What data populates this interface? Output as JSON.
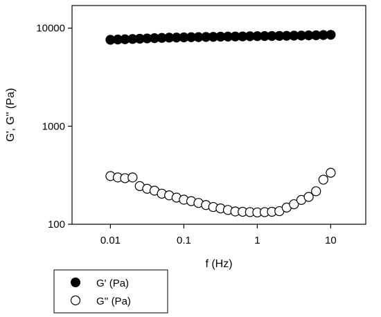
{
  "chart_data": {
    "type": "scatter",
    "xlabel": "f (Hz)",
    "ylabel": "G', G'' (Pa)",
    "xscale": "log",
    "yscale": "log",
    "xlim": [
      0.003,
      30
    ],
    "ylim": [
      100,
      17000
    ],
    "x_ticks": [
      0.01,
      0.1,
      1,
      10
    ],
    "x_tick_labels": [
      "0.01",
      "0.1",
      "1",
      "10"
    ],
    "y_ticks": [
      100,
      1000,
      10000
    ],
    "y_tick_labels": [
      "100",
      "1000",
      "10000"
    ],
    "grid": false,
    "legend": "bottom-left-outside",
    "x": [
      0.01,
      0.0126,
      0.0158,
      0.02,
      0.0251,
      0.0316,
      0.0398,
      0.0501,
      0.0631,
      0.0794,
      0.1,
      0.126,
      0.158,
      0.2,
      0.251,
      0.316,
      0.398,
      0.501,
      0.631,
      0.794,
      1,
      1.26,
      1.58,
      2,
      2.51,
      3.16,
      3.98,
      5.01,
      6.31,
      7.94,
      10
    ],
    "series": [
      {
        "name": "G' (Pa)",
        "marker": "filled-circle",
        "color": "#000000",
        "values": [
          7600,
          7650,
          7700,
          7750,
          7800,
          7850,
          7900,
          7950,
          8000,
          8020,
          8050,
          8080,
          8100,
          8130,
          8150,
          8180,
          8200,
          8220,
          8240,
          8260,
          8280,
          8300,
          8320,
          8340,
          8360,
          8380,
          8400,
          8430,
          8460,
          8500,
          8550
        ]
      },
      {
        "name": "G'' (Pa)",
        "marker": "open-circle",
        "color": "#000000",
        "values": [
          310,
          300,
          295,
          300,
          245,
          230,
          220,
          205,
          197,
          187,
          178,
          172,
          165,
          157,
          150,
          145,
          140,
          135,
          134,
          133,
          132,
          133,
          134,
          136,
          148,
          160,
          177,
          190,
          217,
          285,
          335
        ]
      }
    ]
  }
}
